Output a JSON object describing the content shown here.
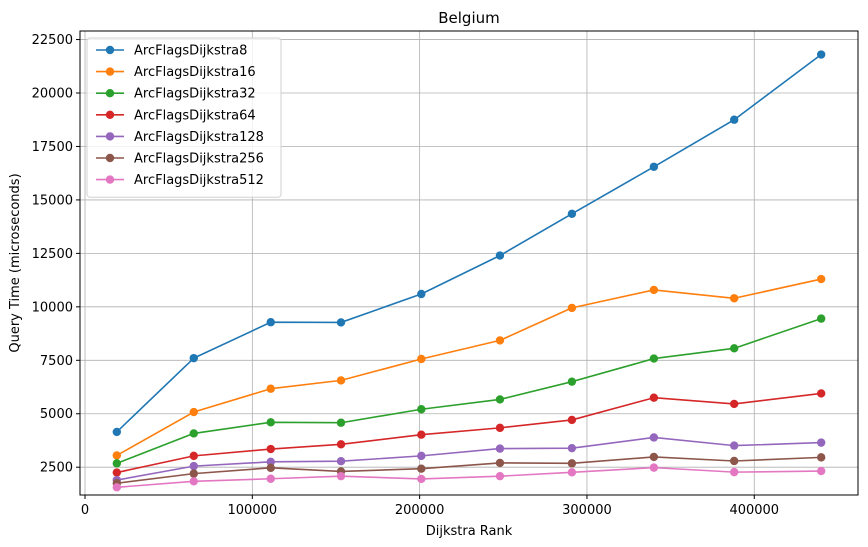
{
  "chart_data": {
    "type": "line",
    "title": "Belgium",
    "xlabel": "Dijkstra Rank",
    "ylabel": "Query Time (microseconds)",
    "xlim": [
      -3000,
      462000
    ],
    "ylim": [
      1200,
      22900
    ],
    "x_ticks": [
      0,
      100000,
      200000,
      300000,
      400000
    ],
    "x_tick_labels": [
      "0",
      "100000",
      "200000",
      "300000",
      "400000"
    ],
    "y_ticks": [
      2500,
      5000,
      7500,
      10000,
      12500,
      15000,
      17500,
      20000,
      22500
    ],
    "y_tick_labels": [
      "2500",
      "5000",
      "7500",
      "10000",
      "12500",
      "15000",
      "17500",
      "20000",
      "22500"
    ],
    "grid": true,
    "legend_position": "top-left",
    "x": [
      19000,
      65000,
      111000,
      153000,
      201000,
      248000,
      291000,
      340000,
      388000,
      440000
    ],
    "series": [
      {
        "name": "ArcFlagsDijkstra8",
        "color": "#1f77b4",
        "values": [
          4150,
          7600,
          9280,
          9270,
          10600,
          12400,
          14350,
          16550,
          18750,
          21800
        ]
      },
      {
        "name": "ArcFlagsDijkstra16",
        "color": "#ff7f0e",
        "values": [
          3050,
          5080,
          6170,
          6560,
          7560,
          8430,
          9950,
          10790,
          10400,
          11300
        ]
      },
      {
        "name": "ArcFlagsDijkstra32",
        "color": "#2ca02c",
        "values": [
          2680,
          4080,
          4600,
          4580,
          5210,
          5670,
          6500,
          7580,
          8060,
          9450
        ]
      },
      {
        "name": "ArcFlagsDijkstra64",
        "color": "#d62728",
        "values": [
          2250,
          3030,
          3350,
          3570,
          4020,
          4340,
          4710,
          5750,
          5460,
          5950
        ]
      },
      {
        "name": "ArcFlagsDijkstra128",
        "color": "#9467bd",
        "values": [
          1900,
          2550,
          2750,
          2780,
          3030,
          3370,
          3390,
          3890,
          3510,
          3650
        ]
      },
      {
        "name": "ArcFlagsDijkstra256",
        "color": "#8c564b",
        "values": [
          1750,
          2200,
          2470,
          2300,
          2430,
          2700,
          2680,
          2980,
          2790,
          2960
        ]
      },
      {
        "name": "ArcFlagsDijkstra512",
        "color": "#e377c2",
        "values": [
          1560,
          1840,
          1960,
          2080,
          1950,
          2080,
          2260,
          2480,
          2270,
          2320
        ]
      }
    ]
  }
}
